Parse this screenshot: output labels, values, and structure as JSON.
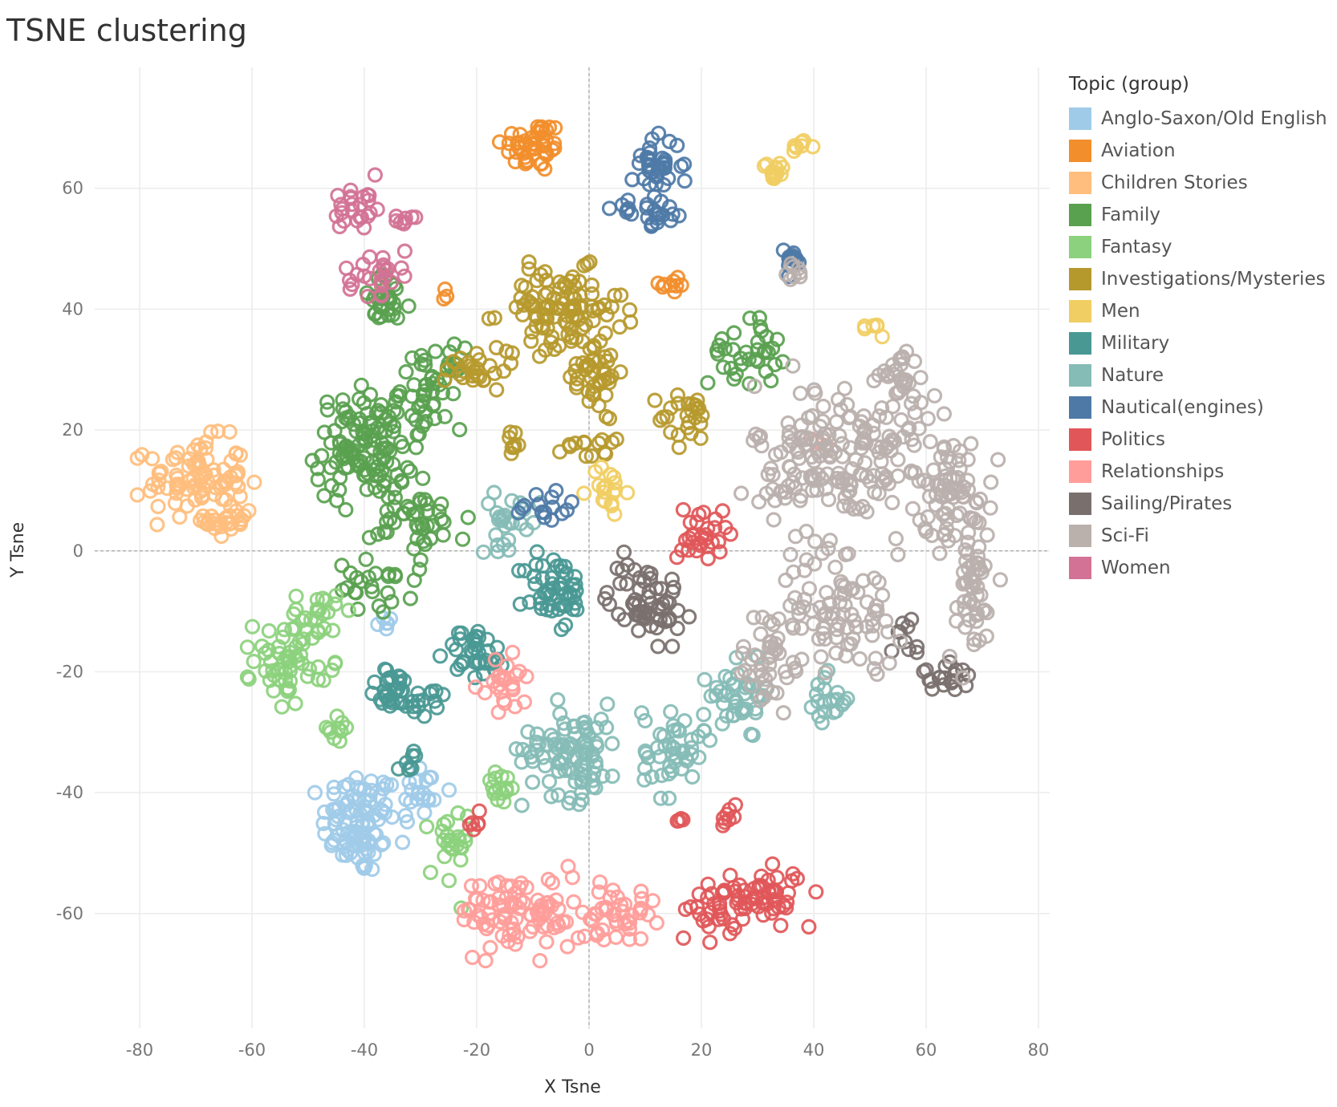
{
  "chart_data": {
    "type": "scatter",
    "title": "TSNE clustering",
    "xlabel": "X Tsne",
    "ylabel": "Y Tsne",
    "xlim": [
      -88,
      82
    ],
    "ylim": [
      -79,
      80
    ],
    "xticks": [
      -80,
      -60,
      -40,
      -20,
      0,
      20,
      40,
      60,
      80
    ],
    "yticks": [
      60,
      40,
      20,
      0,
      -20,
      -40,
      -60
    ],
    "grid": true,
    "zero_reference_lines": true,
    "marker": "hollow-circle",
    "legend_title": "Topic (group)",
    "legend_position": "right",
    "series": [
      {
        "name": "Anglo-Saxon/Old English",
        "color": "#a0cbe8",
        "clusters": [
          {
            "cx": -41,
            "cy": -45,
            "rx": 6,
            "ry": 8,
            "n": 95
          },
          {
            "cx": -30,
            "cy": -40,
            "rx": 4,
            "ry": 5,
            "n": 22
          },
          {
            "cx": -36,
            "cy": -12,
            "rx": 2,
            "ry": 2,
            "n": 6
          }
        ]
      },
      {
        "name": "Aviation",
        "color": "#f28e2b",
        "clusters": [
          {
            "cx": -10,
            "cy": 67,
            "rx": 5,
            "ry": 4,
            "n": 45
          },
          {
            "cx": 15,
            "cy": 44,
            "rx": 3,
            "ry": 1.5,
            "n": 9
          },
          {
            "cx": -25,
            "cy": 43,
            "rx": 1,
            "ry": 1,
            "n": 3
          }
        ]
      },
      {
        "name": "Children Stories",
        "color": "#ffbe7d",
        "clusters": [
          {
            "cx": -70,
            "cy": 12,
            "rx": 8,
            "ry": 6,
            "n": 85
          },
          {
            "cx": -64,
            "cy": 5,
            "rx": 4,
            "ry": 3,
            "n": 25
          }
        ]
      },
      {
        "name": "Family",
        "color": "#59a14f",
        "clusters": [
          {
            "cx": -40,
            "cy": 17,
            "rx": 8,
            "ry": 8,
            "n": 120
          },
          {
            "cx": -28,
            "cy": 27,
            "rx": 5,
            "ry": 6,
            "n": 50
          },
          {
            "cx": -36,
            "cy": 41,
            "rx": 4,
            "ry": 4,
            "n": 30
          },
          {
            "cx": -30,
            "cy": 5,
            "rx": 8,
            "ry": 5,
            "n": 40
          },
          {
            "cx": -38,
            "cy": -6,
            "rx": 6,
            "ry": 4,
            "n": 25
          },
          {
            "cx": 28,
            "cy": 33,
            "rx": 6,
            "ry": 5,
            "n": 35
          }
        ]
      },
      {
        "name": "Fantasy",
        "color": "#8cd17d",
        "clusters": [
          {
            "cx": -53,
            "cy": -18,
            "rx": 6,
            "ry": 6,
            "n": 60
          },
          {
            "cx": -48,
            "cy": -10,
            "rx": 4,
            "ry": 3,
            "n": 20
          },
          {
            "cx": -25,
            "cy": -50,
            "rx": 3,
            "ry": 7,
            "n": 25
          },
          {
            "cx": -16,
            "cy": -39,
            "rx": 3,
            "ry": 3,
            "n": 15
          },
          {
            "cx": -45,
            "cy": -30,
            "rx": 3,
            "ry": 3,
            "n": 10
          }
        ]
      },
      {
        "name": "Investigations/Mysteries",
        "color": "#b6992d",
        "clusters": [
          {
            "cx": -5,
            "cy": 40,
            "rx": 10,
            "ry": 6,
            "n": 100
          },
          {
            "cx": 0,
            "cy": 30,
            "rx": 6,
            "ry": 6,
            "n": 45
          },
          {
            "cx": -20,
            "cy": 30,
            "rx": 5,
            "ry": 3,
            "n": 25
          },
          {
            "cx": 0,
            "cy": 18,
            "rx": 4,
            "ry": 3,
            "n": 15
          },
          {
            "cx": 18,
            "cy": 22,
            "rx": 5,
            "ry": 4,
            "n": 25
          },
          {
            "cx": -14,
            "cy": 18,
            "rx": 2,
            "ry": 2,
            "n": 8
          }
        ]
      },
      {
        "name": "Men",
        "color": "#f1ce63",
        "clusters": [
          {
            "cx": 33,
            "cy": 63,
            "rx": 2,
            "ry": 2,
            "n": 15
          },
          {
            "cx": 38,
            "cy": 67,
            "rx": 1.5,
            "ry": 1,
            "n": 8
          },
          {
            "cx": 3,
            "cy": 10,
            "rx": 3,
            "ry": 4,
            "n": 18
          },
          {
            "cx": 51,
            "cy": 37,
            "rx": 1.5,
            "ry": 1.5,
            "n": 6
          }
        ]
      },
      {
        "name": "Military",
        "color": "#499894",
        "clusters": [
          {
            "cx": -6,
            "cy": -7,
            "rx": 5,
            "ry": 6,
            "n": 50
          },
          {
            "cx": -35,
            "cy": -23,
            "rx": 4,
            "ry": 3,
            "n": 30
          },
          {
            "cx": -20,
            "cy": -17,
            "rx": 5,
            "ry": 4,
            "n": 35
          },
          {
            "cx": -28,
            "cy": -25,
            "rx": 4,
            "ry": 2,
            "n": 15
          },
          {
            "cx": -32,
            "cy": -35,
            "rx": 2,
            "ry": 2,
            "n": 8
          }
        ]
      },
      {
        "name": "Nature",
        "color": "#86bcb6",
        "clusters": [
          {
            "cx": -3,
            "cy": -33,
            "rx": 8,
            "ry": 7,
            "n": 90
          },
          {
            "cx": 15,
            "cy": -33,
            "rx": 5,
            "ry": 7,
            "n": 45
          },
          {
            "cx": 27,
            "cy": -24,
            "rx": 5,
            "ry": 5,
            "n": 40
          },
          {
            "cx": -14,
            "cy": 5,
            "rx": 5,
            "ry": 4,
            "n": 25
          },
          {
            "cx": 42,
            "cy": -25,
            "rx": 4,
            "ry": 4,
            "n": 20
          }
        ]
      },
      {
        "name": "Nautical(engines)",
        "color": "#4e79a7",
        "clusters": [
          {
            "cx": 12,
            "cy": 64,
            "rx": 4,
            "ry": 4,
            "n": 35
          },
          {
            "cx": 11,
            "cy": 56,
            "rx": 6,
            "ry": 2,
            "n": 25
          },
          {
            "cx": 36,
            "cy": 48,
            "rx": 2,
            "ry": 2,
            "n": 15
          },
          {
            "cx": -8,
            "cy": 7,
            "rx": 5,
            "ry": 3,
            "n": 15
          }
        ]
      },
      {
        "name": "Politics",
        "color": "#e15759",
        "clusters": [
          {
            "cx": 30,
            "cy": -57,
            "rx": 8,
            "ry": 4,
            "n": 60
          },
          {
            "cx": 22,
            "cy": -60,
            "rx": 4,
            "ry": 4,
            "n": 20
          },
          {
            "cx": 20,
            "cy": 3,
            "rx": 4,
            "ry": 5,
            "n": 30
          },
          {
            "cx": -20,
            "cy": -45,
            "rx": 1.5,
            "ry": 1.5,
            "n": 6
          },
          {
            "cx": 16,
            "cy": -45,
            "rx": 1,
            "ry": 1,
            "n": 4
          },
          {
            "cx": 25,
            "cy": -44,
            "rx": 2,
            "ry": 2,
            "n": 8
          }
        ]
      },
      {
        "name": "Relationships",
        "color": "#ff9d9a",
        "clusters": [
          {
            "cx": -12,
            "cy": -60,
            "rx": 10,
            "ry": 6,
            "n": 90
          },
          {
            "cx": 5,
            "cy": -60,
            "rx": 6,
            "ry": 4,
            "n": 40
          },
          {
            "cx": -15,
            "cy": -22,
            "rx": 4,
            "ry": 4,
            "n": 25
          },
          {
            "cx": 40,
            "cy": 18,
            "rx": 2,
            "ry": 2,
            "n": 4
          }
        ]
      },
      {
        "name": "Sailing/Pirates",
        "color": "#79706e",
        "clusters": [
          {
            "cx": 10,
            "cy": -8,
            "rx": 6,
            "ry": 6,
            "n": 60
          },
          {
            "cx": 64,
            "cy": -21,
            "rx": 4,
            "ry": 2,
            "n": 20
          },
          {
            "cx": 56,
            "cy": -14,
            "rx": 3,
            "ry": 3,
            "n": 10
          }
        ]
      },
      {
        "name": "Sci-Fi",
        "color": "#bab0ac",
        "clusters": [
          {
            "cx": 45,
            "cy": 15,
            "rx": 14,
            "ry": 12,
            "n": 180
          },
          {
            "cx": 65,
            "cy": 10,
            "rx": 6,
            "ry": 8,
            "n": 70
          },
          {
            "cx": 68,
            "cy": -8,
            "rx": 4,
            "ry": 10,
            "n": 50
          },
          {
            "cx": 45,
            "cy": -10,
            "rx": 10,
            "ry": 8,
            "n": 80
          },
          {
            "cx": 32,
            "cy": -18,
            "rx": 5,
            "ry": 8,
            "n": 40
          },
          {
            "cx": 55,
            "cy": 28,
            "rx": 5,
            "ry": 5,
            "n": 30
          },
          {
            "cx": 37,
            "cy": 46,
            "rx": 2,
            "ry": 2,
            "n": 8
          }
        ]
      },
      {
        "name": "Women",
        "color": "#d37295",
        "clusters": [
          {
            "cx": -41,
            "cy": 57,
            "rx": 4,
            "ry": 4,
            "n": 25
          },
          {
            "cx": -38,
            "cy": 46,
            "rx": 4,
            "ry": 3,
            "n": 25
          },
          {
            "cx": -33,
            "cy": 55,
            "rx": 2,
            "ry": 1.5,
            "n": 8
          }
        ]
      }
    ]
  }
}
